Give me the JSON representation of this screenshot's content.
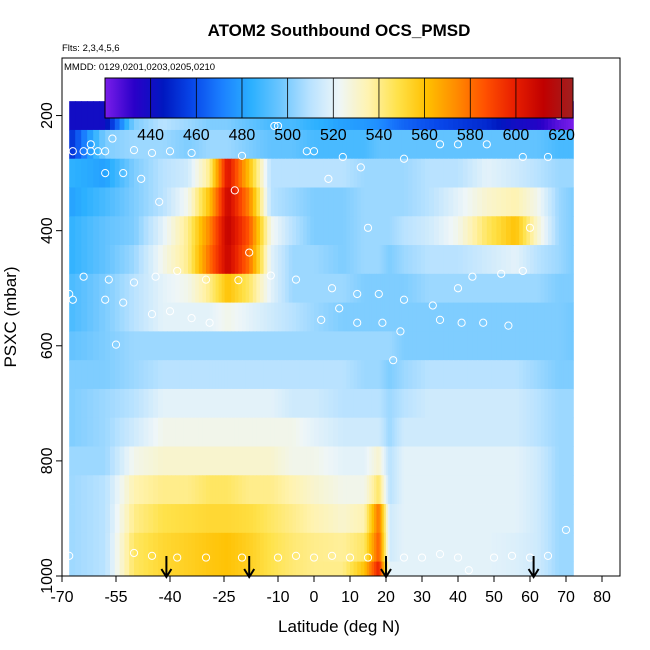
{
  "chart_data": {
    "type": "heatmap",
    "title": "ATOM2 Southbound OCS_PMSD",
    "flights_label": "Flts: 2,3,4,5,6",
    "dates_label": "MMDD: 0129,0201,0203,0205,0210",
    "xlabel": "Latitude (deg N)",
    "ylabel": "PSXC (mbar)",
    "xlim": [
      -70,
      85
    ],
    "ylim": [
      1000,
      100
    ],
    "x_ticks": [
      -70,
      -55,
      -40,
      -25,
      -10,
      0,
      10,
      20,
      30,
      40,
      50,
      60,
      70,
      80
    ],
    "x_tick_labels": [
      "-70",
      "-55",
      "-40",
      "-25",
      "-10",
      "0",
      "10",
      "20",
      "30",
      "40",
      "50",
      "60",
      "70",
      "80"
    ],
    "y_ticks": [
      200,
      400,
      600,
      800,
      1000
    ],
    "y_tick_labels": [
      "200",
      "400",
      "600",
      "800",
      "1000"
    ],
    "colorbar": {
      "min": 420,
      "max": 625,
      "ticks": [
        440,
        460,
        480,
        500,
        520,
        540,
        560,
        580,
        600,
        620
      ],
      "tick_labels": [
        "440",
        "460",
        "480",
        "500",
        "520",
        "540",
        "560",
        "580",
        "600",
        "620"
      ],
      "colors": [
        "#7a1dea",
        "#2a00c8",
        "#0018c0",
        "#0848ea",
        "#1b80ff",
        "#2bb0ff",
        "#6cc6ff",
        "#b8e2ff",
        "#eef6f8",
        "#fff3b0",
        "#ffe24a",
        "#ffc000",
        "#ff8c00",
        "#ff5000",
        "#e81e00",
        "#c00000",
        "#a02020"
      ]
    },
    "grid_pressures": [
      200,
      250,
      300,
      350,
      400,
      450,
      500,
      550,
      600,
      650,
      700,
      750,
      800,
      850,
      900,
      950,
      1000
    ],
    "grid_lats": [
      -68,
      -58,
      -50,
      -42,
      -35,
      -29,
      -24,
      -18,
      -12,
      -6,
      0,
      8,
      14,
      18,
      21,
      25,
      32,
      40,
      48,
      56,
      62,
      68,
      72
    ],
    "grid_values": [
      [
        440,
        440,
        500,
        510,
        505,
        500,
        500,
        495,
        490,
        490,
        485,
        480,
        478,
        475,
        470,
        465,
        460,
        455,
        450,
        440,
        435,
        425,
        420
      ],
      [
        450,
        500,
        505,
        505,
        500,
        505,
        505,
        500,
        495,
        495,
        490,
        490,
        490,
        495,
        495,
        495,
        495,
        495,
        495,
        495,
        495,
        490,
        490
      ],
      [
        485,
        480,
        500,
        510,
        515,
        540,
        605,
        560,
        510,
        510,
        510,
        510,
        505,
        505,
        505,
        505,
        510,
        510,
        520,
        515,
        510,
        505,
        505
      ],
      [
        480,
        490,
        500,
        510,
        525,
        560,
        610,
        575,
        510,
        505,
        500,
        500,
        505,
        505,
        505,
        505,
        510,
        520,
        530,
        535,
        525,
        505,
        500
      ],
      [
        485,
        495,
        500,
        520,
        540,
        575,
        612,
        585,
        525,
        510,
        500,
        500,
        505,
        505,
        505,
        510,
        515,
        525,
        545,
        560,
        530,
        505,
        500
      ],
      [
        485,
        495,
        505,
        525,
        540,
        580,
        610,
        580,
        520,
        505,
        505,
        500,
        505,
        505,
        500,
        505,
        510,
        510,
        515,
        520,
        510,
        505,
        500
      ],
      [
        490,
        500,
        510,
        520,
        525,
        540,
        560,
        545,
        520,
        505,
        505,
        505,
        500,
        500,
        500,
        500,
        505,
        505,
        505,
        505,
        505,
        500,
        500
      ],
      [
        490,
        500,
        510,
        520,
        520,
        520,
        525,
        520,
        515,
        510,
        505,
        500,
        500,
        500,
        500,
        500,
        500,
        500,
        500,
        500,
        500,
        500,
        498
      ],
      [
        495,
        500,
        505,
        505,
        505,
        505,
        505,
        505,
        505,
        505,
        505,
        505,
        505,
        505,
        505,
        500,
        500,
        500,
        500,
        500,
        500,
        500,
        498
      ],
      [
        500,
        500,
        505,
        510,
        510,
        510,
        510,
        510,
        510,
        510,
        510,
        510,
        505,
        505,
        500,
        505,
        510,
        510,
        510,
        510,
        505,
        500,
        500
      ],
      [
        500,
        505,
        510,
        520,
        520,
        520,
        520,
        520,
        520,
        515,
        515,
        510,
        510,
        510,
        505,
        510,
        515,
        515,
        515,
        515,
        510,
        505,
        505
      ],
      [
        500,
        505,
        515,
        525,
        525,
        525,
        525,
        525,
        525,
        525,
        520,
        515,
        515,
        515,
        505,
        515,
        515,
        515,
        515,
        515,
        510,
        505,
        505
      ],
      [
        505,
        505,
        525,
        530,
        530,
        530,
        530,
        530,
        530,
        525,
        525,
        520,
        520,
        530,
        510,
        520,
        520,
        520,
        520,
        520,
        515,
        505,
        505
      ],
      [
        505,
        510,
        535,
        540,
        540,
        545,
        545,
        540,
        540,
        535,
        530,
        525,
        525,
        545,
        510,
        520,
        520,
        520,
        520,
        520,
        515,
        505,
        505
      ],
      [
        505,
        510,
        540,
        548,
        550,
        552,
        552,
        550,
        545,
        540,
        535,
        530,
        535,
        580,
        515,
        520,
        520,
        520,
        520,
        520,
        515,
        505,
        505
      ],
      [
        505,
        510,
        545,
        552,
        555,
        558,
        560,
        555,
        548,
        543,
        540,
        538,
        545,
        585,
        515,
        520,
        520,
        520,
        520,
        518,
        515,
        505,
        505
      ],
      [
        505,
        510,
        545,
        552,
        555,
        558,
        560,
        555,
        548,
        543,
        540,
        540,
        560,
        600,
        520,
        520,
        520,
        520,
        520,
        518,
        515,
        505,
        505
      ]
    ],
    "profile_markers_lat": [
      -41,
      -18,
      20,
      61
    ],
    "sample_points": [
      [
        -54,
        190
      ],
      [
        -47,
        190
      ],
      [
        -11,
        218
      ],
      [
        -10,
        218
      ],
      [
        -56,
        240
      ],
      [
        -62,
        250
      ],
      [
        -67,
        262
      ],
      [
        -64,
        262
      ],
      [
        -62,
        262
      ],
      [
        -60,
        262
      ],
      [
        -58,
        262
      ],
      [
        -50,
        260
      ],
      [
        -45,
        265
      ],
      [
        -40,
        262
      ],
      [
        -34,
        265
      ],
      [
        -20,
        270
      ],
      [
        0,
        262
      ],
      [
        -2,
        262
      ],
      [
        8,
        272
      ],
      [
        25,
        275
      ],
      [
        35,
        250
      ],
      [
        40,
        250
      ],
      [
        48,
        250
      ],
      [
        58,
        272
      ],
      [
        65,
        272
      ],
      [
        -58,
        300
      ],
      [
        -53,
        300
      ],
      [
        -48,
        310
      ],
      [
        -43,
        350
      ],
      [
        -22,
        330
      ],
      [
        4,
        310
      ],
      [
        13,
        290
      ],
      [
        15,
        395
      ],
      [
        -18,
        438
      ],
      [
        60,
        395
      ],
      [
        68,
        200
      ],
      [
        -68,
        510
      ],
      [
        -64,
        480
      ],
      [
        -57,
        485
      ],
      [
        -50,
        490
      ],
      [
        -44,
        480
      ],
      [
        -38,
        470
      ],
      [
        -30,
        485
      ],
      [
        -21,
        486
      ],
      [
        -12,
        478
      ],
      [
        -5,
        485
      ],
      [
        5,
        500
      ],
      [
        12,
        510
      ],
      [
        18,
        510
      ],
      [
        25,
        520
      ],
      [
        33,
        530
      ],
      [
        40,
        500
      ],
      [
        44,
        480
      ],
      [
        52,
        475
      ],
      [
        58,
        470
      ],
      [
        -67,
        520
      ],
      [
        -58,
        520
      ],
      [
        -53,
        525
      ],
      [
        -45,
        545
      ],
      [
        -40,
        540
      ],
      [
        -34,
        552
      ],
      [
        -29,
        560
      ],
      [
        2,
        555
      ],
      [
        7,
        535
      ],
      [
        12,
        560
      ],
      [
        19,
        560
      ],
      [
        24,
        575
      ],
      [
        35,
        555
      ],
      [
        41,
        560
      ],
      [
        47,
        560
      ],
      [
        54,
        565
      ],
      [
        -55,
        598
      ],
      [
        22,
        625
      ],
      [
        -50,
        960
      ],
      [
        -45,
        965
      ],
      [
        -38,
        968
      ],
      [
        -30,
        968
      ],
      [
        -20,
        968
      ],
      [
        -10,
        968
      ],
      [
        -5,
        965
      ],
      [
        0,
        968
      ],
      [
        5,
        965
      ],
      [
        10,
        968
      ],
      [
        15,
        968
      ],
      [
        25,
        968
      ],
      [
        30,
        968
      ],
      [
        35,
        962
      ],
      [
        40,
        968
      ],
      [
        43,
        990
      ],
      [
        50,
        968
      ],
      [
        55,
        965
      ],
      [
        60,
        968
      ],
      [
        65,
        965
      ],
      [
        70,
        920
      ],
      [
        -68,
        965
      ]
    ]
  }
}
